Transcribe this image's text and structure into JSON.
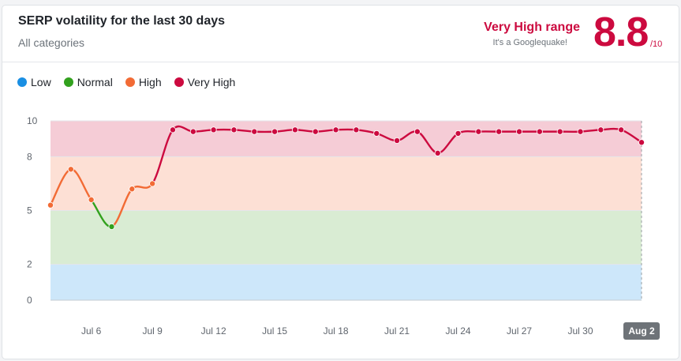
{
  "header": {
    "title": "SERP volatility for the last 30 days",
    "subtitle": "All categories",
    "range_label": "Very High range",
    "range_sub": "It's a Googlequake!",
    "score": "8.8",
    "score_max": "/10"
  },
  "legend": [
    {
      "label": "Low",
      "color": "#1a8fe3"
    },
    {
      "label": "Normal",
      "color": "#32a11e"
    },
    {
      "label": "High",
      "color": "#f26b35"
    },
    {
      "label": "Very High",
      "color": "#cc0a3f"
    }
  ],
  "chart_data": {
    "type": "line",
    "title": "SERP volatility for the last 30 days",
    "xlabel": "",
    "ylabel": "",
    "ylim": [
      0,
      10
    ],
    "y_ticks": [
      0,
      2,
      5,
      8,
      10
    ],
    "x_tick_labels": [
      "Jul 6",
      "Jul 9",
      "Jul 12",
      "Jul 15",
      "Jul 18",
      "Jul 21",
      "Jul 24",
      "Jul 27",
      "Jul 30",
      "Aug 2"
    ],
    "highlighted_x": "Aug 2",
    "bands": [
      {
        "name": "Low",
        "from": 0,
        "to": 2,
        "fill": "#cde7fa"
      },
      {
        "name": "Normal",
        "from": 2,
        "to": 5,
        "fill": "#d9ecd3"
      },
      {
        "name": "High",
        "from": 5,
        "to": 8,
        "fill": "#fde0d5"
      },
      {
        "name": "Very High",
        "from": 8,
        "to": 10,
        "fill": "#f5ccd6"
      }
    ],
    "x": [
      "Jul 4",
      "Jul 5",
      "Jul 6",
      "Jul 7",
      "Jul 8",
      "Jul 9",
      "Jul 10",
      "Jul 11",
      "Jul 12",
      "Jul 13",
      "Jul 14",
      "Jul 15",
      "Jul 16",
      "Jul 17",
      "Jul 18",
      "Jul 19",
      "Jul 20",
      "Jul 21",
      "Jul 22",
      "Jul 23",
      "Jul 24",
      "Jul 25",
      "Jul 26",
      "Jul 27",
      "Jul 28",
      "Jul 29",
      "Jul 30",
      "Jul 31",
      "Aug 1",
      "Aug 2"
    ],
    "values": [
      5.3,
      7.3,
      5.6,
      4.1,
      6.2,
      6.5,
      9.5,
      9.4,
      9.5,
      9.5,
      9.4,
      9.4,
      9.5,
      9.4,
      9.5,
      9.5,
      9.3,
      8.9,
      9.4,
      8.2,
      9.3,
      9.4,
      9.4,
      9.4,
      9.4,
      9.4,
      9.4,
      9.5,
      9.5,
      8.8
    ],
    "colors": {
      "low": "#1a8fe3",
      "normal": "#32a11e",
      "high": "#f26b35",
      "very_high": "#cc0a3f"
    }
  }
}
